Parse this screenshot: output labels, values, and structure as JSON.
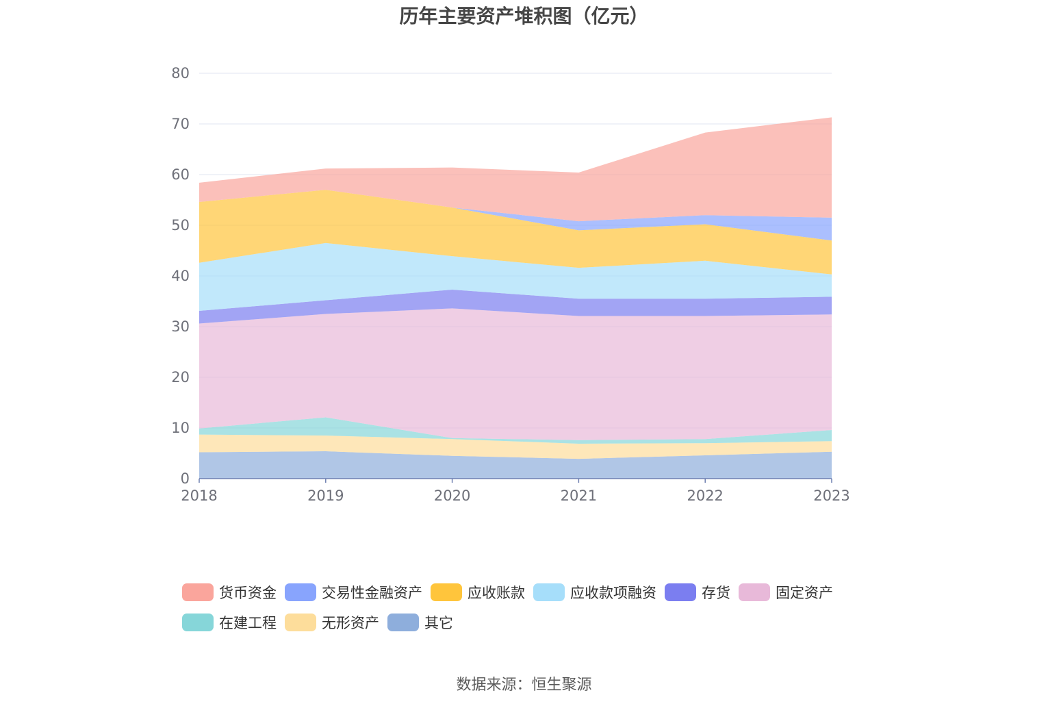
{
  "chart_data": {
    "type": "area",
    "stacked": true,
    "title": "历年主要资产堆积图（亿元）",
    "x": [
      "2018",
      "2019",
      "2020",
      "2021",
      "2022",
      "2023"
    ],
    "ylim": [
      0,
      80
    ],
    "yticks": [
      0,
      10,
      20,
      30,
      40,
      50,
      60,
      70,
      80
    ],
    "grid": true,
    "legend_position": "bottom",
    "series": [
      {
        "name": "其它",
        "color": "#8eaedc",
        "values": [
          5.2,
          5.4,
          4.5,
          3.9,
          4.6,
          5.3
        ]
      },
      {
        "name": "无形资产",
        "color": "#fddd9b",
        "values": [
          3.5,
          3.1,
          3.3,
          3.0,
          2.4,
          2.1
        ]
      },
      {
        "name": "在建工程",
        "color": "#86d6d9",
        "values": [
          1.2,
          3.6,
          0.2,
          0.7,
          0.8,
          2.2
        ]
      },
      {
        "name": "固定资产",
        "color": "#e8b9d9",
        "values": [
          20.7,
          20.4,
          25.6,
          24.5,
          24.3,
          22.8
        ]
      },
      {
        "name": "存货",
        "color": "#7b7ef0",
        "values": [
          2.5,
          2.7,
          3.7,
          3.4,
          3.4,
          3.5
        ]
      },
      {
        "name": "应收款项融资",
        "color": "#a6defa",
        "values": [
          9.5,
          11.3,
          6.6,
          6.1,
          7.5,
          4.4
        ]
      },
      {
        "name": "应收账款",
        "color": "#ffc53c",
        "values": [
          12.0,
          10.5,
          9.6,
          7.4,
          7.2,
          6.7
        ]
      },
      {
        "name": "交易性金融资产",
        "color": "#88a4fd",
        "values": [
          0.0,
          0.0,
          0.0,
          1.8,
          1.8,
          4.5
        ]
      },
      {
        "name": "货币资金",
        "color": "#faa59c",
        "values": [
          3.8,
          4.2,
          7.9,
          9.6,
          16.3,
          19.8
        ]
      }
    ]
  },
  "legend": [
    {
      "label": "货币资金",
      "color": "#faa59c"
    },
    {
      "label": "交易性金融资产",
      "color": "#88a4fd"
    },
    {
      "label": "应收账款",
      "color": "#ffc53c"
    },
    {
      "label": "应收款项融资",
      "color": "#a6defa"
    },
    {
      "label": "存货",
      "color": "#7b7ef0"
    },
    {
      "label": "固定资产",
      "color": "#e8b9d9"
    },
    {
      "label": "在建工程",
      "color": "#86d6d9"
    },
    {
      "label": "无形资产",
      "color": "#fddd9b"
    },
    {
      "label": "其它",
      "color": "#8eaedc"
    }
  ],
  "source": "数据来源：恒生聚源"
}
